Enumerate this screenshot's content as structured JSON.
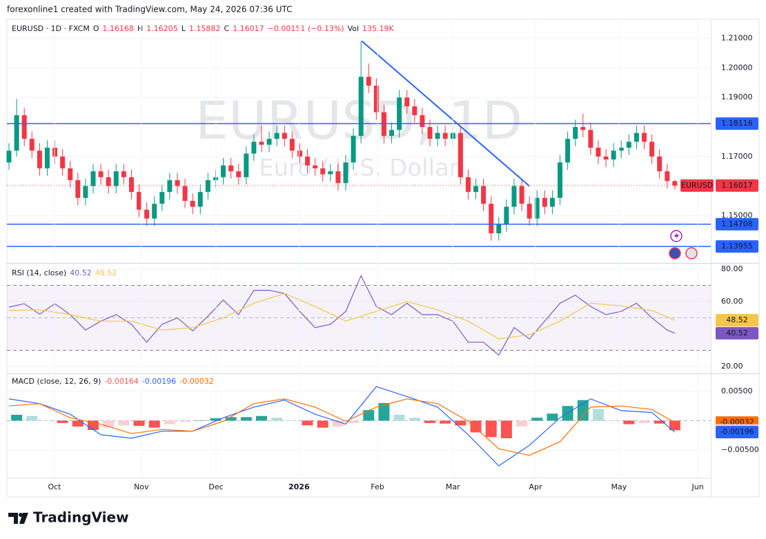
{
  "header": {
    "text": "forexonline1 created with TradingView.com, May 24, 2026 07:36 UTC"
  },
  "footer": {
    "brand": "TradingView"
  },
  "chart_data": [
    {
      "type": "candlestick",
      "title": "EURUSD · 1D · FXCM",
      "symbol": "EURUSD",
      "watermark_title": "EURUSD, 1D",
      "watermark_subtitle": "Euro / U.S. Dollar",
      "ohlc_letters": [
        "O",
        "H",
        "L",
        "C"
      ],
      "change_label": "−0.00151 (−0.13%)",
      "volume_label": "Vol",
      "volume": "135.19K",
      "up_color": "#089981",
      "down_color": "#f23645",
      "level_color": "#2962ff",
      "grid": true,
      "xlim": [
        -0.27,
        91.7
      ],
      "ylim": [
        1.1342,
        1.216
      ],
      "yticks": [
        {
          "value": 1.21,
          "label": "1.21000"
        },
        {
          "value": 1.2,
          "label": "1.20000"
        },
        {
          "value": 1.19,
          "label": "1.19000"
        },
        {
          "value": 1.17,
          "label": "1.17000"
        },
        {
          "value": 1.15,
          "label": "1.15000"
        }
      ],
      "x": [
        0,
        1,
        2,
        3,
        4,
        5,
        6,
        7,
        8,
        9,
        10,
        11,
        12,
        13,
        14,
        15,
        16,
        17,
        18,
        19,
        20,
        21,
        22,
        23,
        24,
        25,
        26,
        27,
        28,
        29,
        30,
        31,
        32,
        33,
        34,
        35,
        36,
        37,
        38,
        39,
        40,
        41,
        42,
        43,
        44,
        45,
        46,
        47,
        48,
        49,
        50,
        51,
        52,
        53,
        54,
        55,
        56,
        57,
        58,
        59,
        60,
        61,
        62,
        63,
        64,
        65,
        66,
        67,
        68,
        69,
        70,
        71,
        72,
        73,
        74,
        75,
        76,
        77,
        78,
        79,
        80,
        81,
        82,
        83,
        84,
        85,
        86,
        87
      ],
      "open": [
        1.168,
        1.172,
        1.184,
        1.176,
        1.172,
        1.166,
        1.173,
        1.17,
        1.166,
        1.162,
        1.156,
        1.16,
        1.165,
        1.163,
        1.16,
        1.165,
        1.163,
        1.158,
        1.152,
        1.149,
        1.154,
        1.158,
        1.162,
        1.16,
        1.155,
        1.153,
        1.158,
        1.162,
        1.163,
        1.167,
        1.165,
        1.163,
        1.171,
        1.175,
        1.174,
        1.176,
        1.178,
        1.176,
        1.172,
        1.17,
        1.167,
        1.166,
        1.164,
        1.165,
        1.161,
        1.168,
        1.177,
        1.197,
        1.194,
        1.185,
        1.177,
        1.179,
        1.19,
        1.187,
        1.184,
        1.18,
        1.176,
        1.178,
        1.176,
        1.178,
        1.163,
        1.158,
        1.16,
        1.154,
        1.144,
        1.147,
        1.153,
        1.16,
        1.154,
        1.149,
        1.156,
        1.153,
        1.156,
        1.168,
        1.176,
        1.18,
        1.179,
        1.173,
        1.17,
        1.169,
        1.172,
        1.173,
        1.175,
        1.178,
        1.175,
        1.17,
        1.165,
        1.16168
      ],
      "high": [
        1.1745,
        1.1895,
        1.1865,
        1.1785,
        1.1745,
        1.1755,
        1.1755,
        1.1725,
        1.1685,
        1.1645,
        1.1625,
        1.1675,
        1.1675,
        1.1655,
        1.1675,
        1.1675,
        1.1655,
        1.1605,
        1.1545,
        1.1565,
        1.1605,
        1.1645,
        1.1645,
        1.1625,
        1.1575,
        1.1605,
        1.1645,
        1.1655,
        1.1695,
        1.1695,
        1.1675,
        1.1735,
        1.1775,
        1.1805,
        1.1785,
        1.1805,
        1.1805,
        1.1785,
        1.1745,
        1.1725,
        1.1695,
        1.1685,
        1.1675,
        1.1675,
        1.1705,
        1.1795,
        1.2091,
        1.2015,
        1.1965,
        1.1875,
        1.1815,
        1.1925,
        1.1925,
        1.1895,
        1.1865,
        1.1825,
        1.1805,
        1.1805,
        1.1805,
        1.1805,
        1.1655,
        1.1625,
        1.1625,
        1.1565,
        1.1495,
        1.1555,
        1.1625,
        1.1625,
        1.1565,
        1.1585,
        1.1585,
        1.1585,
        1.1705,
        1.1785,
        1.1825,
        1.1845,
        1.1815,
        1.1755,
        1.1725,
        1.1745,
        1.1755,
        1.1775,
        1.1805,
        1.1805,
        1.1775,
        1.1725,
        1.1675,
        1.16205
      ],
      "low": [
        1.1655,
        1.17,
        1.1735,
        1.1695,
        1.1635,
        1.1635,
        1.1675,
        1.1635,
        1.1595,
        1.1535,
        1.1535,
        1.1575,
        1.1605,
        1.1575,
        1.1575,
        1.1605,
        1.1555,
        1.1495,
        1.1465,
        1.1465,
        1.1515,
        1.1555,
        1.1575,
        1.1525,
        1.1505,
        1.1505,
        1.1555,
        1.1595,
        1.1605,
        1.1625,
        1.1605,
        1.1605,
        1.1685,
        1.1715,
        1.1715,
        1.1735,
        1.1735,
        1.1695,
        1.1675,
        1.1645,
        1.1635,
        1.1615,
        1.1615,
        1.1585,
        1.1585,
        1.1655,
        1.1745,
        1.1915,
        1.1825,
        1.1745,
        1.1745,
        1.1765,
        1.1845,
        1.1815,
        1.1775,
        1.1735,
        1.1735,
        1.1735,
        1.1735,
        1.1605,
        1.1555,
        1.1555,
        1.1515,
        1.1415,
        1.1415,
        1.1445,
        1.1505,
        1.1515,
        1.1465,
        1.1465,
        1.1505,
        1.1505,
        1.1535,
        1.1655,
        1.1735,
        1.1765,
        1.1705,
        1.1675,
        1.1665,
        1.1665,
        1.1695,
        1.1705,
        1.1725,
        1.1725,
        1.1675,
        1.1625,
        1.1592,
        1.15882
      ],
      "close": [
        1.172,
        1.184,
        1.176,
        1.172,
        1.166,
        1.173,
        1.17,
        1.166,
        1.162,
        1.156,
        1.16,
        1.165,
        1.163,
        1.16,
        1.165,
        1.163,
        1.158,
        1.152,
        1.149,
        1.154,
        1.158,
        1.162,
        1.16,
        1.155,
        1.153,
        1.158,
        1.162,
        1.163,
        1.167,
        1.165,
        1.163,
        1.171,
        1.175,
        1.174,
        1.176,
        1.178,
        1.176,
        1.172,
        1.17,
        1.167,
        1.166,
        1.164,
        1.165,
        1.161,
        1.168,
        1.177,
        1.197,
        1.194,
        1.185,
        1.177,
        1.179,
        1.19,
        1.187,
        1.184,
        1.18,
        1.176,
        1.178,
        1.176,
        1.178,
        1.163,
        1.158,
        1.16,
        1.154,
        1.144,
        1.147,
        1.153,
        1.16,
        1.154,
        1.149,
        1.156,
        1.153,
        1.156,
        1.168,
        1.176,
        1.18,
        1.179,
        1.173,
        1.17,
        1.169,
        1.172,
        1.173,
        1.175,
        1.178,
        1.175,
        1.17,
        1.165,
        1.1617,
        1.16017
      ],
      "levels": [
        1.18116,
        1.14708,
        1.13955
      ],
      "trendline": {
        "x": [
          46.1,
          68
        ],
        "y": [
          1.2091,
          1.16
        ]
      }
    },
    {
      "type": "line",
      "title": "RSI (14, close)",
      "grid": true,
      "xlim": [
        -0.27,
        91.7
      ],
      "ylim": [
        16.2,
        83
      ],
      "yticks": [
        {
          "value": 80,
          "label": "80.00"
        },
        {
          "value": 60,
          "label": "60.00"
        },
        {
          "value": 20,
          "label": "20.00"
        }
      ],
      "band": [
        30,
        70
      ],
      "midline": 50,
      "band_color": "#7e57c2",
      "series": [
        {
          "color": "#7e57c2",
          "x": [
            0,
            2,
            4,
            6,
            8,
            10,
            12,
            14,
            16,
            18,
            20,
            22,
            24,
            26,
            28,
            30,
            32,
            34,
            36,
            38,
            40,
            42,
            44,
            46,
            48,
            50,
            52,
            54,
            56,
            58,
            60,
            62,
            64,
            66,
            68,
            70,
            72,
            74,
            76,
            78,
            80,
            82,
            84,
            86,
            87
          ],
          "values": [
            56.6,
            58.7,
            52.3,
            58.7,
            52,
            42.5,
            48,
            52,
            46,
            35,
            46,
            50,
            42,
            51,
            61,
            52,
            67,
            67,
            65,
            54,
            44,
            46,
            54,
            76,
            57,
            52,
            59,
            52,
            52,
            48,
            35,
            35,
            27,
            44,
            37,
            48,
            59,
            64,
            57,
            52,
            54,
            59,
            50,
            42.5,
            40.52
          ]
        },
        {
          "color": "#f7c548",
          "x": [
            0,
            4,
            8,
            12,
            16,
            20,
            24,
            28,
            32,
            36,
            40,
            44,
            48,
            52,
            56,
            60,
            64,
            68,
            72,
            76,
            80,
            84,
            87
          ],
          "values": [
            54.5,
            55,
            52,
            48,
            48,
            42.5,
            44,
            50,
            59,
            65,
            57,
            48,
            54,
            60,
            55,
            48,
            37,
            39.6,
            48,
            59,
            57.4,
            54.5,
            48.52
          ]
        }
      ]
    },
    {
      "type": "macd",
      "title": "MACD (close, 12, 26, 9)",
      "grid": true,
      "xlim": [
        -0.27,
        91.7
      ],
      "ylim": [
        -0.0097,
        0.00782
      ],
      "yticks": [
        {
          "value": 0.005,
          "label": "0.00500"
        },
        {
          "value": -0.005,
          "label": "−0.00500"
        }
      ],
      "xticks": [
        {
          "value": 5.95,
          "label": "Oct"
        },
        {
          "value": 17.3,
          "label": "Nov"
        },
        {
          "value": 27.05,
          "label": "Dec"
        },
        {
          "value": 37.9,
          "label": "2026"
        },
        {
          "value": 48.15,
          "label": "Feb"
        },
        {
          "value": 58,
          "label": "Mar"
        },
        {
          "value": 68.8,
          "label": "Apr"
        },
        {
          "value": 79.7,
          "label": "May"
        },
        {
          "value": 90,
          "label": "Jun"
        }
      ],
      "zero_line": true,
      "macd_color": "#2962ff",
      "signal_color": "#ff6d00",
      "hist_colors": [
        "#26a69a",
        "#b2dfdb",
        "#ff5252",
        "#ffcdd2"
      ],
      "x": [
        0,
        4,
        8,
        12,
        16,
        20,
        24,
        28,
        32,
        36,
        40,
        44,
        48,
        52,
        56,
        60,
        64,
        68,
        72,
        76,
        80,
        84,
        87
      ],
      "macd": [
        0.0037,
        0.0029,
        0.0011,
        -0.0024,
        -0.003,
        -0.0018,
        -0.0018,
        0.0005,
        0.0023,
        0.0035,
        0.0011,
        -0.0006,
        0.0058,
        0.0041,
        0.0023,
        -0.0024,
        -0.0077,
        -0.0042,
        0.0005,
        0.0037,
        0.0017,
        0.0014,
        -0.00196
      ],
      "signal": [
        0.0025,
        0.0029,
        0.0005,
        -0.0006,
        -0.0022,
        -0.0015,
        -0.0018,
        -0.0001,
        0.0029,
        0.0037,
        0.0023,
        -0.0001,
        0.0023,
        0.0037,
        0.0029,
        -0.0001,
        -0.0048,
        -0.0059,
        -0.0036,
        0.0023,
        0.0025,
        0.0019,
        -0.00032
      ],
      "hist_x": [
        1,
        3,
        5,
        7,
        9,
        11,
        13,
        15,
        17,
        19,
        21,
        23,
        25,
        27,
        29,
        31,
        33,
        35,
        37,
        39,
        41,
        43,
        45,
        47,
        49,
        51,
        53,
        55,
        57,
        59,
        61,
        63,
        65,
        67,
        69,
        71,
        73,
        75,
        77,
        79,
        81,
        83,
        85,
        87
      ],
      "histogram": [
        0.001,
        0.0008,
        0,
        -0.0004,
        -0.001,
        -0.0016,
        -0.0012,
        -0.0008,
        -0.0009,
        -0.0012,
        -0.0006,
        -0.0002,
        0,
        0.0004,
        0.0006,
        0.0006,
        0.0008,
        0.0005,
        0,
        -0.0008,
        -0.0012,
        -0.001,
        -0.0004,
        0.0018,
        0.003,
        0.001,
        0.0005,
        -0.0004,
        -0.0005,
        -0.0008,
        -0.002,
        -0.0028,
        -0.003,
        -0.001,
        0.0005,
        0.0012,
        0.0025,
        0.0035,
        0.002,
        0,
        -0.0006,
        -0.0004,
        -0.0005,
        -0.00164
      ]
    }
  ]
}
